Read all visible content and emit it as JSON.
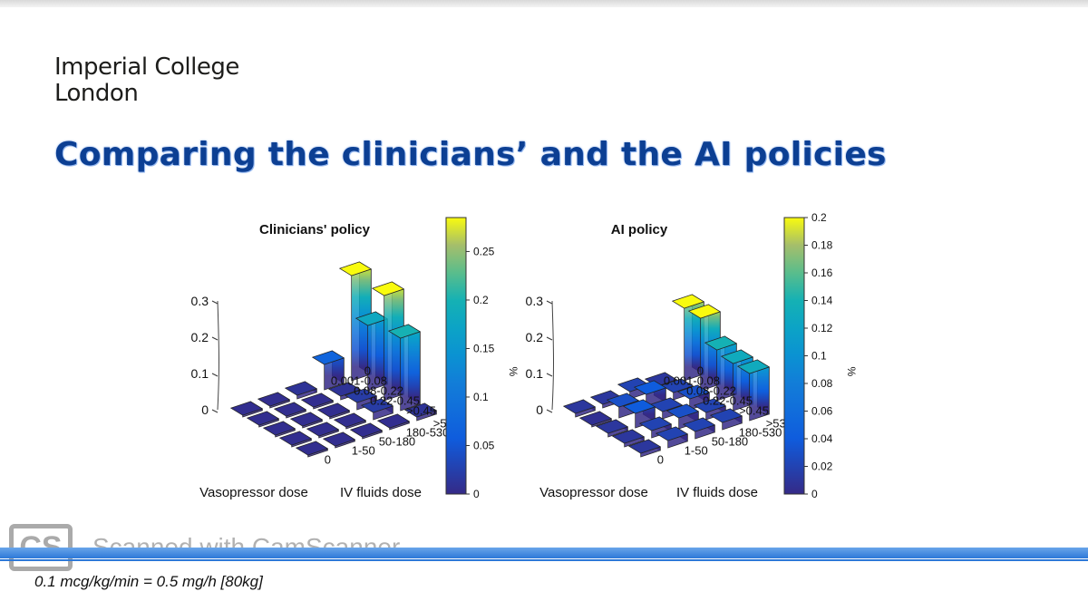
{
  "logo": {
    "line1": "Imperial College",
    "line2": "London"
  },
  "title": "Comparing the clinicians’ and the AI policies",
  "footnote": "0.1 mcg/kg/min = 0.5 mg/h [80kg]",
  "watermark": {
    "brand": "CS",
    "text": "Scanned with CamScanner"
  },
  "chart_data": [
    {
      "type": "bar3d",
      "title": "Clinicians' policy",
      "xlabel": "Vasopressor dose",
      "ylabel": "IV fluids dose",
      "zlabel": "%",
      "x_categories": [
        "0",
        "0.001-0.08",
        "0.08-0.22",
        "0.22-0.45",
        ">0.45"
      ],
      "y_categories": [
        "0",
        "1-50",
        "50-180",
        "180-530",
        ">530"
      ],
      "z_ticks": [
        "0",
        "0.1",
        "0.2",
        "0.3"
      ],
      "zlim": [
        0,
        0.3
      ],
      "values": [
        [
          0.005,
          0.005,
          0.01,
          0.07,
          0.29
        ],
        [
          0.005,
          0.005,
          0.005,
          0.01,
          0.18
        ],
        [
          0.005,
          0.005,
          0.005,
          0.02,
          0.29
        ],
        [
          0.005,
          0.005,
          0.005,
          0.02,
          0.2
        ],
        [
          0.005,
          0.005,
          0.005,
          0.005,
          0.01
        ]
      ],
      "colorbar": {
        "ticks": [
          "0",
          "0.05",
          "0.1",
          "0.15",
          "0.2",
          "0.25"
        ],
        "min": 0,
        "max": 0.285,
        "label": "%"
      }
    },
    {
      "type": "bar3d",
      "title": "AI policy",
      "xlabel": "Vasopressor dose",
      "ylabel": "IV fluids dose",
      "zlabel": "%",
      "x_categories": [
        "0",
        "0.001-0.08",
        "0.08-0.22",
        "0.22-0.45",
        ">0.45"
      ],
      "y_categories": [
        "0",
        "1-50",
        "50-180",
        "180-530",
        ">530"
      ],
      "z_ticks": [
        "0",
        "0.1",
        "0.2",
        "0.3"
      ],
      "zlim": [
        0,
        0.3
      ],
      "values": [
        [
          0.01,
          0.01,
          0.02,
          0.01,
          0.2
        ],
        [
          0.005,
          0.03,
          0.04,
          0.02,
          0.2
        ],
        [
          0.01,
          0.04,
          0.02,
          0.03,
          0.14
        ],
        [
          0.01,
          0.02,
          0.03,
          0.02,
          0.13
        ],
        [
          0.01,
          0.02,
          0.02,
          0.02,
          0.13
        ]
      ],
      "colorbar": {
        "ticks": [
          "0",
          "0.02",
          "0.04",
          "0.06",
          "0.08",
          "0.1",
          "0.12",
          "0.14",
          "0.16",
          "0.18",
          "0.2"
        ],
        "min": 0,
        "max": 0.2,
        "label": "%"
      }
    }
  ]
}
